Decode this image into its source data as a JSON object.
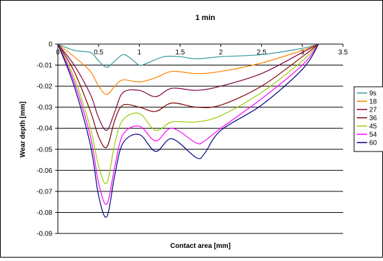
{
  "chart_data": {
    "type": "line",
    "title": "1 min",
    "xlabel": "Contact area [mm]",
    "ylabel": "Wear depth [mm]",
    "xlim": [
      0,
      3.5
    ],
    "ylim": [
      -0.09,
      0
    ],
    "x_ticks": [
      0,
      0.5,
      1,
      1.5,
      2,
      2.5,
      3,
      3.5
    ],
    "x_tick_labels": [
      "0",
      "0.5",
      "1",
      "1.5",
      "2",
      "2.5",
      "3",
      "3.5"
    ],
    "y_ticks": [
      0,
      -0.01,
      -0.02,
      -0.03,
      -0.04,
      -0.05,
      -0.06,
      -0.07,
      -0.08,
      -0.09
    ],
    "y_tick_labels": [
      "0",
      "-0.01",
      "-0.02",
      "-0.03",
      "-0.04",
      "-0.05",
      "-0.06",
      "-0.07",
      "-0.08",
      "-0.09"
    ],
    "grid": "horizontal",
    "legend_position": "right (clipped at image edge)",
    "series": [
      {
        "name": "9s",
        "color": "#339999",
        "x": [
          0,
          0.2,
          0.4,
          0.5,
          0.6,
          0.7,
          0.8,
          0.9,
          1.0,
          1.1,
          1.3,
          1.5,
          1.7,
          2.0,
          2.5,
          3.0,
          3.2
        ],
        "y": [
          0,
          -0.003,
          -0.004,
          -0.008,
          -0.011,
          -0.008,
          -0.005,
          -0.007,
          -0.01,
          -0.009,
          -0.006,
          -0.006,
          -0.007,
          -0.006,
          -0.005,
          -0.002,
          0
        ]
      },
      {
        "name": "18",
        "color": "#FF8000",
        "x": [
          0,
          0.2,
          0.4,
          0.5,
          0.6,
          0.7,
          0.8,
          1.0,
          1.2,
          1.4,
          1.7,
          2.0,
          2.5,
          3.0,
          3.2
        ],
        "y": [
          0,
          -0.006,
          -0.013,
          -0.02,
          -0.024,
          -0.02,
          -0.017,
          -0.018,
          -0.016,
          -0.013,
          -0.014,
          -0.013,
          -0.009,
          -0.003,
          0
        ]
      },
      {
        "name": "27",
        "color": "#800040",
        "x": [
          0,
          0.2,
          0.4,
          0.5,
          0.6,
          0.7,
          0.8,
          1.0,
          1.2,
          1.4,
          1.7,
          2.0,
          2.5,
          3.0,
          3.2
        ],
        "y": [
          0,
          -0.01,
          -0.024,
          -0.035,
          -0.041,
          -0.032,
          -0.023,
          -0.022,
          -0.025,
          -0.021,
          -0.022,
          -0.02,
          -0.014,
          -0.004,
          0
        ]
      },
      {
        "name": "36",
        "color": "#800000",
        "x": [
          0,
          0.2,
          0.4,
          0.5,
          0.6,
          0.7,
          0.8,
          1.0,
          1.2,
          1.4,
          1.7,
          2.0,
          2.5,
          3.0,
          3.2
        ],
        "y": [
          0,
          -0.013,
          -0.032,
          -0.044,
          -0.049,
          -0.036,
          -0.029,
          -0.03,
          -0.032,
          -0.028,
          -0.03,
          -0.029,
          -0.02,
          -0.006,
          0
        ]
      },
      {
        "name": "45",
        "color": "#99CC00",
        "x": [
          0,
          0.2,
          0.4,
          0.5,
          0.6,
          0.7,
          0.8,
          1.0,
          1.2,
          1.4,
          1.7,
          2.0,
          2.5,
          3.0,
          3.2
        ],
        "y": [
          0,
          -0.016,
          -0.04,
          -0.058,
          -0.066,
          -0.047,
          -0.036,
          -0.033,
          -0.041,
          -0.037,
          -0.037,
          -0.034,
          -0.023,
          -0.008,
          0
        ]
      },
      {
        "name": "54",
        "color": "#FF00FF",
        "x": [
          0,
          0.2,
          0.4,
          0.5,
          0.6,
          0.7,
          0.8,
          1.0,
          1.2,
          1.4,
          1.7,
          1.8,
          2.0,
          2.5,
          3.0,
          3.2
        ],
        "y": [
          0,
          -0.018,
          -0.044,
          -0.066,
          -0.076,
          -0.058,
          -0.043,
          -0.039,
          -0.046,
          -0.04,
          -0.047,
          -0.046,
          -0.04,
          -0.026,
          -0.01,
          0
        ]
      },
      {
        "name": "60",
        "color": "#000080",
        "x": [
          0,
          0.2,
          0.4,
          0.5,
          0.6,
          0.7,
          0.8,
          1.0,
          1.2,
          1.4,
          1.7,
          1.8,
          2.0,
          2.5,
          3.0,
          3.2
        ],
        "y": [
          0,
          -0.02,
          -0.048,
          -0.072,
          -0.082,
          -0.062,
          -0.047,
          -0.043,
          -0.051,
          -0.045,
          -0.054,
          -0.052,
          -0.041,
          -0.029,
          -0.012,
          0
        ]
      }
    ]
  }
}
